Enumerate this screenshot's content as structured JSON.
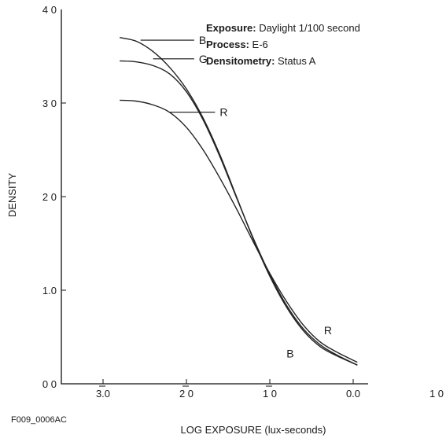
{
  "chart_data": {
    "type": "line",
    "title": "",
    "xlabel": "LOG EXPOSURE (lux-seconds)",
    "ylabel": "DENSITY",
    "x_tick_labels": [
      "3.0",
      "2 0",
      "1 0",
      "0.0",
      "1 0"
    ],
    "x_tick_bars": [
      true,
      true,
      true,
      false,
      false
    ],
    "x_ticks": [
      -3.0,
      -2.0,
      -1.0,
      0.0,
      1.0
    ],
    "y_tick_labels": [
      "4 0",
      "3 0",
      "2 0",
      "1.0",
      "0 0"
    ],
    "y_ticks": [
      4.0,
      3.0,
      2.0,
      1.0,
      0.0
    ],
    "xlim": [
      -3.5,
      1.0
    ],
    "ylim": [
      0.0,
      4.0
    ],
    "grid": false,
    "series": [
      {
        "name": "B",
        "x": [
          -2.8,
          -2.6,
          -2.4,
          -2.2,
          -2.0,
          -1.8,
          -1.6,
          -1.4,
          -1.2,
          -1.0,
          -0.8,
          -0.6,
          -0.4,
          -0.2,
          0.05
        ],
        "y": [
          3.7,
          3.66,
          3.55,
          3.38,
          3.15,
          2.84,
          2.45,
          2.0,
          1.55,
          1.15,
          0.82,
          0.57,
          0.4,
          0.3,
          0.2
        ]
      },
      {
        "name": "G",
        "x": [
          -2.8,
          -2.6,
          -2.4,
          -2.2,
          -2.0,
          -1.8,
          -1.6,
          -1.4,
          -1.2,
          -1.0,
          -0.8,
          -0.6,
          -0.4,
          -0.2,
          0.05
        ],
        "y": [
          3.45,
          3.44,
          3.4,
          3.31,
          3.12,
          2.82,
          2.43,
          1.99,
          1.56,
          1.17,
          0.84,
          0.59,
          0.42,
          0.31,
          0.2
        ]
      },
      {
        "name": "R",
        "x": [
          -2.8,
          -2.6,
          -2.4,
          -2.2,
          -2.0,
          -1.8,
          -1.6,
          -1.4,
          -1.2,
          -1.0,
          -0.8,
          -0.6,
          -0.4,
          -0.2,
          0.05
        ],
        "y": [
          3.03,
          3.02,
          2.98,
          2.9,
          2.74,
          2.5,
          2.2,
          1.87,
          1.52,
          1.18,
          0.88,
          0.63,
          0.45,
          0.34,
          0.23
        ]
      }
    ],
    "curve_labels": [
      {
        "text": "B",
        "x": -1.85,
        "y": 3.63
      },
      {
        "text": "G",
        "x": -1.85,
        "y": 3.43
      },
      {
        "text": "R",
        "x": -1.6,
        "y": 2.86
      },
      {
        "text": "R",
        "x": -0.35,
        "y": 0.53
      },
      {
        "text": "B",
        "x": -0.8,
        "y": 0.28
      }
    ],
    "annotations": [
      {
        "label": "Exposure:",
        "value": "Daylight 1/100 second"
      },
      {
        "label": "Process:",
        "value": "E-6"
      },
      {
        "label": "Densitometry:",
        "value": "Status A"
      }
    ]
  },
  "figure_id": "F009_0006AC"
}
